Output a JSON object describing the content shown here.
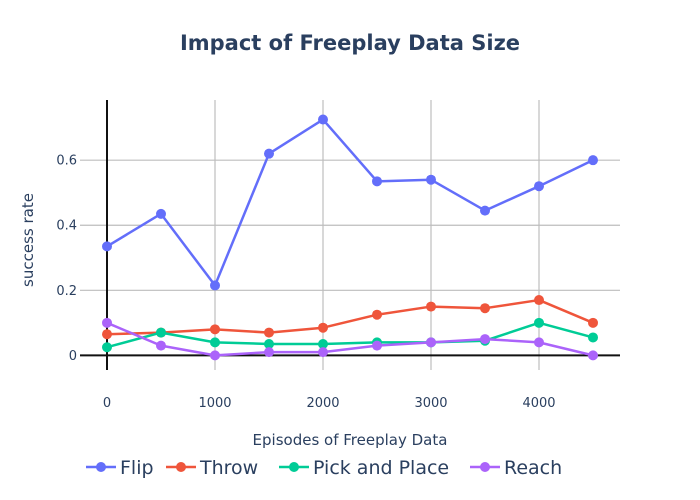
{
  "chart_data": {
    "type": "line",
    "title": "Impact of Freeplay Data Size",
    "xlabel": "Episodes of Freeplay Data",
    "ylabel": "success rate",
    "x": [
      0,
      500,
      1000,
      1500,
      2000,
      2500,
      3000,
      3500,
      4000,
      4500
    ],
    "xlim": [
      -250,
      4750
    ],
    "ylim": [
      -0.045,
      0.785
    ],
    "xticks": [
      0,
      1000,
      2000,
      3000,
      4000
    ],
    "xtick_labels": [
      "0",
      "1000",
      "2000",
      "3000",
      "4000"
    ],
    "yticks": [
      0,
      0.2,
      0.4,
      0.6
    ],
    "ytick_labels": [
      "0",
      "0.2",
      "0.4",
      "0.6"
    ],
    "grid": true,
    "legend_position": "bottom",
    "series": [
      {
        "name": "Flip",
        "color": "#636efa",
        "values": [
          0.335,
          0.435,
          0.215,
          0.62,
          0.725,
          0.535,
          0.54,
          0.445,
          0.52,
          0.6
        ]
      },
      {
        "name": "Throw",
        "color": "#ef553b",
        "values": [
          0.065,
          0.07,
          0.08,
          0.07,
          0.085,
          0.125,
          0.15,
          0.145,
          0.17,
          0.1
        ]
      },
      {
        "name": "Pick and Place",
        "color": "#00cc96",
        "values": [
          0.025,
          0.07,
          0.04,
          0.035,
          0.035,
          0.04,
          0.04,
          0.045,
          0.1,
          0.055
        ]
      },
      {
        "name": "Reach",
        "color": "#ab63fa",
        "values": [
          0.1,
          0.03,
          0.0,
          0.01,
          0.01,
          0.03,
          0.04,
          0.05,
          0.04,
          0.0
        ]
      }
    ]
  }
}
